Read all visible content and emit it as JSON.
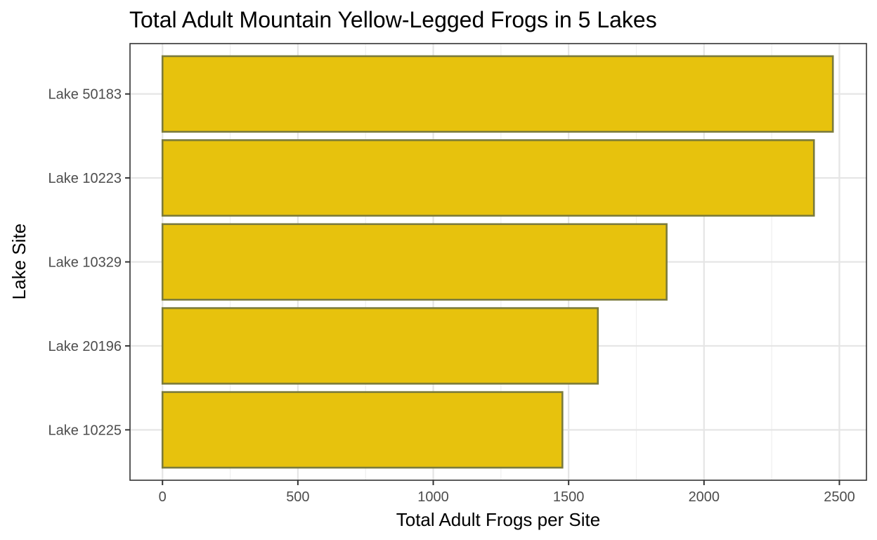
{
  "chart_data": {
    "type": "bar",
    "orientation": "horizontal",
    "title": "Total Adult Mountain Yellow-Legged Frogs in 5 Lakes",
    "xlabel": "Total Adult Frogs per Site",
    "ylabel": "Lake Site",
    "categories": [
      "Lake 50183",
      "Lake 10223",
      "Lake 10329",
      "Lake 20196",
      "Lake 10225"
    ],
    "values": [
      2476,
      2406,
      1862,
      1608,
      1477
    ],
    "xlim": [
      -120,
      2600
    ],
    "x_ticks": [
      0,
      500,
      1000,
      1500,
      2000,
      2500
    ],
    "x_tick_labels": [
      "0",
      "500",
      "1000",
      "1500",
      "2000",
      "2500"
    ],
    "grid": true,
    "legend": "none",
    "colors": {
      "bar_fill": "#e7c20d",
      "bar_outline": "#7b7b3c",
      "panel_border": "#333333",
      "grid": "#e5e5e5"
    }
  }
}
